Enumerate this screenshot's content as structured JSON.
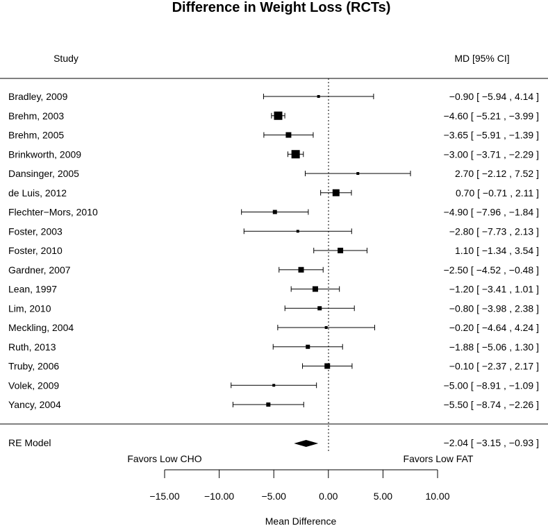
{
  "chart_data": {
    "type": "forest",
    "title": "Difference in Weight Loss (RCTs)",
    "study_header": "Study",
    "estimate_header": "MD [95% CI]",
    "xlabel": "Mean Difference",
    "favors_left": "Favors Low CHO",
    "favors_right": "Favors Low FAT",
    "xlim": [
      -15,
      10
    ],
    "xticks": [
      -15,
      -10,
      -5,
      0,
      5,
      10
    ],
    "xtick_labels": [
      "−15.00",
      "−10.00",
      "−5.00",
      "0.00",
      "5.00",
      "10.00"
    ],
    "reference_line": 0,
    "studies": [
      {
        "name": "Bradley, 2009",
        "md": -0.9,
        "lower": -5.94,
        "upper": 4.14,
        "label": "−0.90 [ −5.94 ,  4.14 ]",
        "weight": 1
      },
      {
        "name": "Brehm, 2003",
        "md": -4.6,
        "lower": -5.21,
        "upper": -3.99,
        "label": "−4.60 [ −5.21 , −3.99 ]",
        "weight": 5
      },
      {
        "name": "Brehm, 2005",
        "md": -3.65,
        "lower": -5.91,
        "upper": -1.39,
        "label": "−3.65 [ −5.91 , −1.39 ]",
        "weight": 3
      },
      {
        "name": "Brinkworth, 2009",
        "md": -3.0,
        "lower": -3.71,
        "upper": -2.29,
        "label": "−3.00 [ −3.71 , −2.29 ]",
        "weight": 5
      },
      {
        "name": "Dansinger, 2005",
        "md": 2.7,
        "lower": -2.12,
        "upper": 7.52,
        "label": "2.70 [ −2.12 ,  7.52 ]",
        "weight": 1
      },
      {
        "name": "de Luis, 2012",
        "md": 0.7,
        "lower": -0.71,
        "upper": 2.11,
        "label": "0.70 [ −0.71 ,  2.11 ]",
        "weight": 4
      },
      {
        "name": "Flechter−Mors, 2010",
        "md": -4.9,
        "lower": -7.96,
        "upper": -1.84,
        "label": "−4.90 [ −7.96 , −1.84 ]",
        "weight": 2
      },
      {
        "name": "Foster, 2003",
        "md": -2.8,
        "lower": -7.73,
        "upper": 2.13,
        "label": "−2.80 [ −7.73 ,  2.13 ]",
        "weight": 1
      },
      {
        "name": "Foster, 2010",
        "md": 1.1,
        "lower": -1.34,
        "upper": 3.54,
        "label": "1.10 [ −1.34 ,  3.54 ]",
        "weight": 3
      },
      {
        "name": "Gardner, 2007",
        "md": -2.5,
        "lower": -4.52,
        "upper": -0.48,
        "label": "−2.50 [ −4.52 , −0.48 ]",
        "weight": 3
      },
      {
        "name": "Lean, 1997",
        "md": -1.2,
        "lower": -3.41,
        "upper": 1.01,
        "label": "−1.20 [ −3.41 ,  1.01 ]",
        "weight": 3
      },
      {
        "name": "Lim, 2010",
        "md": -0.8,
        "lower": -3.98,
        "upper": 2.38,
        "label": "−0.80 [ −3.98 ,  2.38 ]",
        "weight": 2
      },
      {
        "name": "Meckling, 2004",
        "md": -0.2,
        "lower": -4.64,
        "upper": 4.24,
        "label": "−0.20 [ −4.64 ,  4.24 ]",
        "weight": 1
      },
      {
        "name": "Ruth, 2013",
        "md": -1.88,
        "lower": -5.06,
        "upper": 1.3,
        "label": "−1.88 [ −5.06 ,  1.30 ]",
        "weight": 2
      },
      {
        "name": "Truby, 2006",
        "md": -0.1,
        "lower": -2.37,
        "upper": 2.17,
        "label": "−0.10 [ −2.37 ,  2.17 ]",
        "weight": 3
      },
      {
        "name": "Volek, 2009",
        "md": -5.0,
        "lower": -8.91,
        "upper": -1.09,
        "label": "−5.00 [ −8.91 , −1.09 ]",
        "weight": 1
      },
      {
        "name": "Yancy, 2004",
        "md": -5.5,
        "lower": -8.74,
        "upper": -2.26,
        "label": "−5.50 [ −8.74 , −2.26 ]",
        "weight": 2
      }
    ],
    "summary": {
      "name": "RE Model",
      "md": -2.04,
      "lower": -3.15,
      "upper": -0.93,
      "label": "−2.04 [ −3.15 , −0.93 ]"
    }
  }
}
